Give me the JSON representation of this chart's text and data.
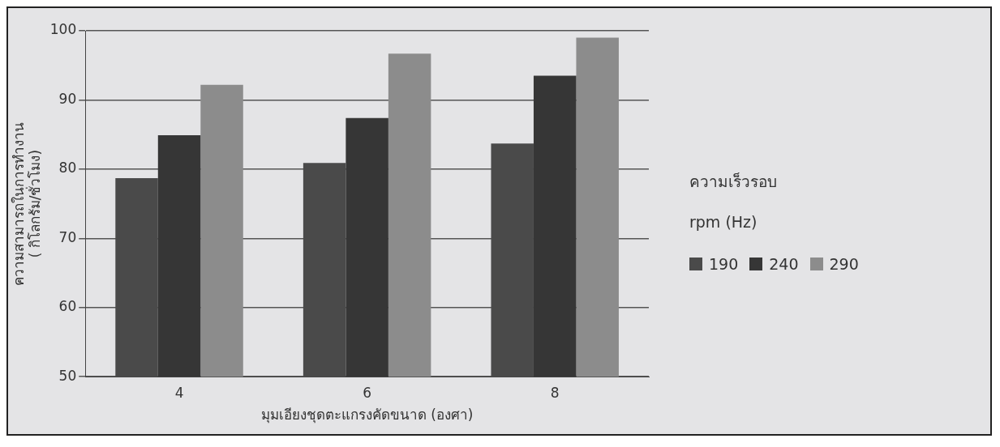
{
  "chart_data": {
    "type": "bar",
    "xlabel": "มุมเอียงชุดตะแกรงคัดขนาด (องศา)",
    "ylabel": "ความสามารถในการทำงาน\n( กิโลกรัม/ชั่วโมง)",
    "legend_title": "ความเร็วรอบ\nrpm (Hz)",
    "categories": [
      "4",
      "6",
      "8"
    ],
    "series": [
      {
        "name": "190",
        "color": "#4a4a4a",
        "values": [
          78.7,
          80.9,
          83.7
        ]
      },
      {
        "name": "240",
        "color": "#363636",
        "values": [
          84.9,
          87.4,
          93.5
        ]
      },
      {
        "name": "290",
        "color": "#8c8c8c",
        "values": [
          92.2,
          96.7,
          99.0
        ]
      }
    ],
    "ylim": [
      50,
      100
    ],
    "yticks": [
      50,
      60,
      70,
      80,
      90,
      100
    ],
    "grid": "y",
    "legend": "right"
  }
}
